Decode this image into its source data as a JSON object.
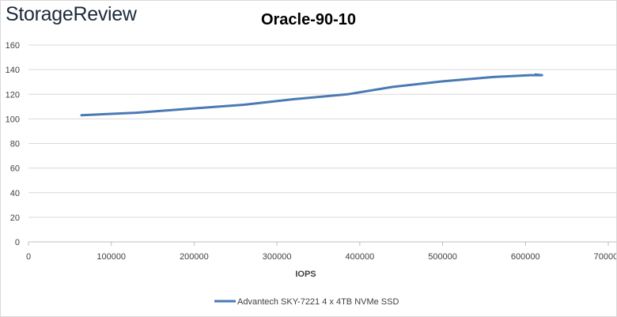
{
  "brand": {
    "logo_text": "StorageReview"
  },
  "chart_data": {
    "type": "line",
    "title": "Oracle-90-10",
    "xlabel": "IOPS",
    "ylabel": "",
    "xlim": [
      0,
      700000
    ],
    "ylim": [
      0,
      160
    ],
    "x_ticks": [
      0,
      100000,
      200000,
      300000,
      400000,
      500000,
      600000,
      700000
    ],
    "y_ticks": [
      0,
      20,
      40,
      60,
      80,
      100,
      120,
      140,
      160
    ],
    "grid": true,
    "legend_position": "bottom",
    "series": [
      {
        "name": "Advantech SKY-7221 4 x 4TB NVMe SSD",
        "color": "#4a7ab5",
        "x": [
          64000,
          130000,
          190000,
          260000,
          320000,
          385000,
          440000,
          500000,
          560000,
          605000,
          620000,
          612000
        ],
        "y": [
          103,
          105,
          108,
          111.5,
          116,
          120,
          126,
          130.5,
          134,
          135.5,
          135.5,
          136
        ]
      }
    ]
  }
}
